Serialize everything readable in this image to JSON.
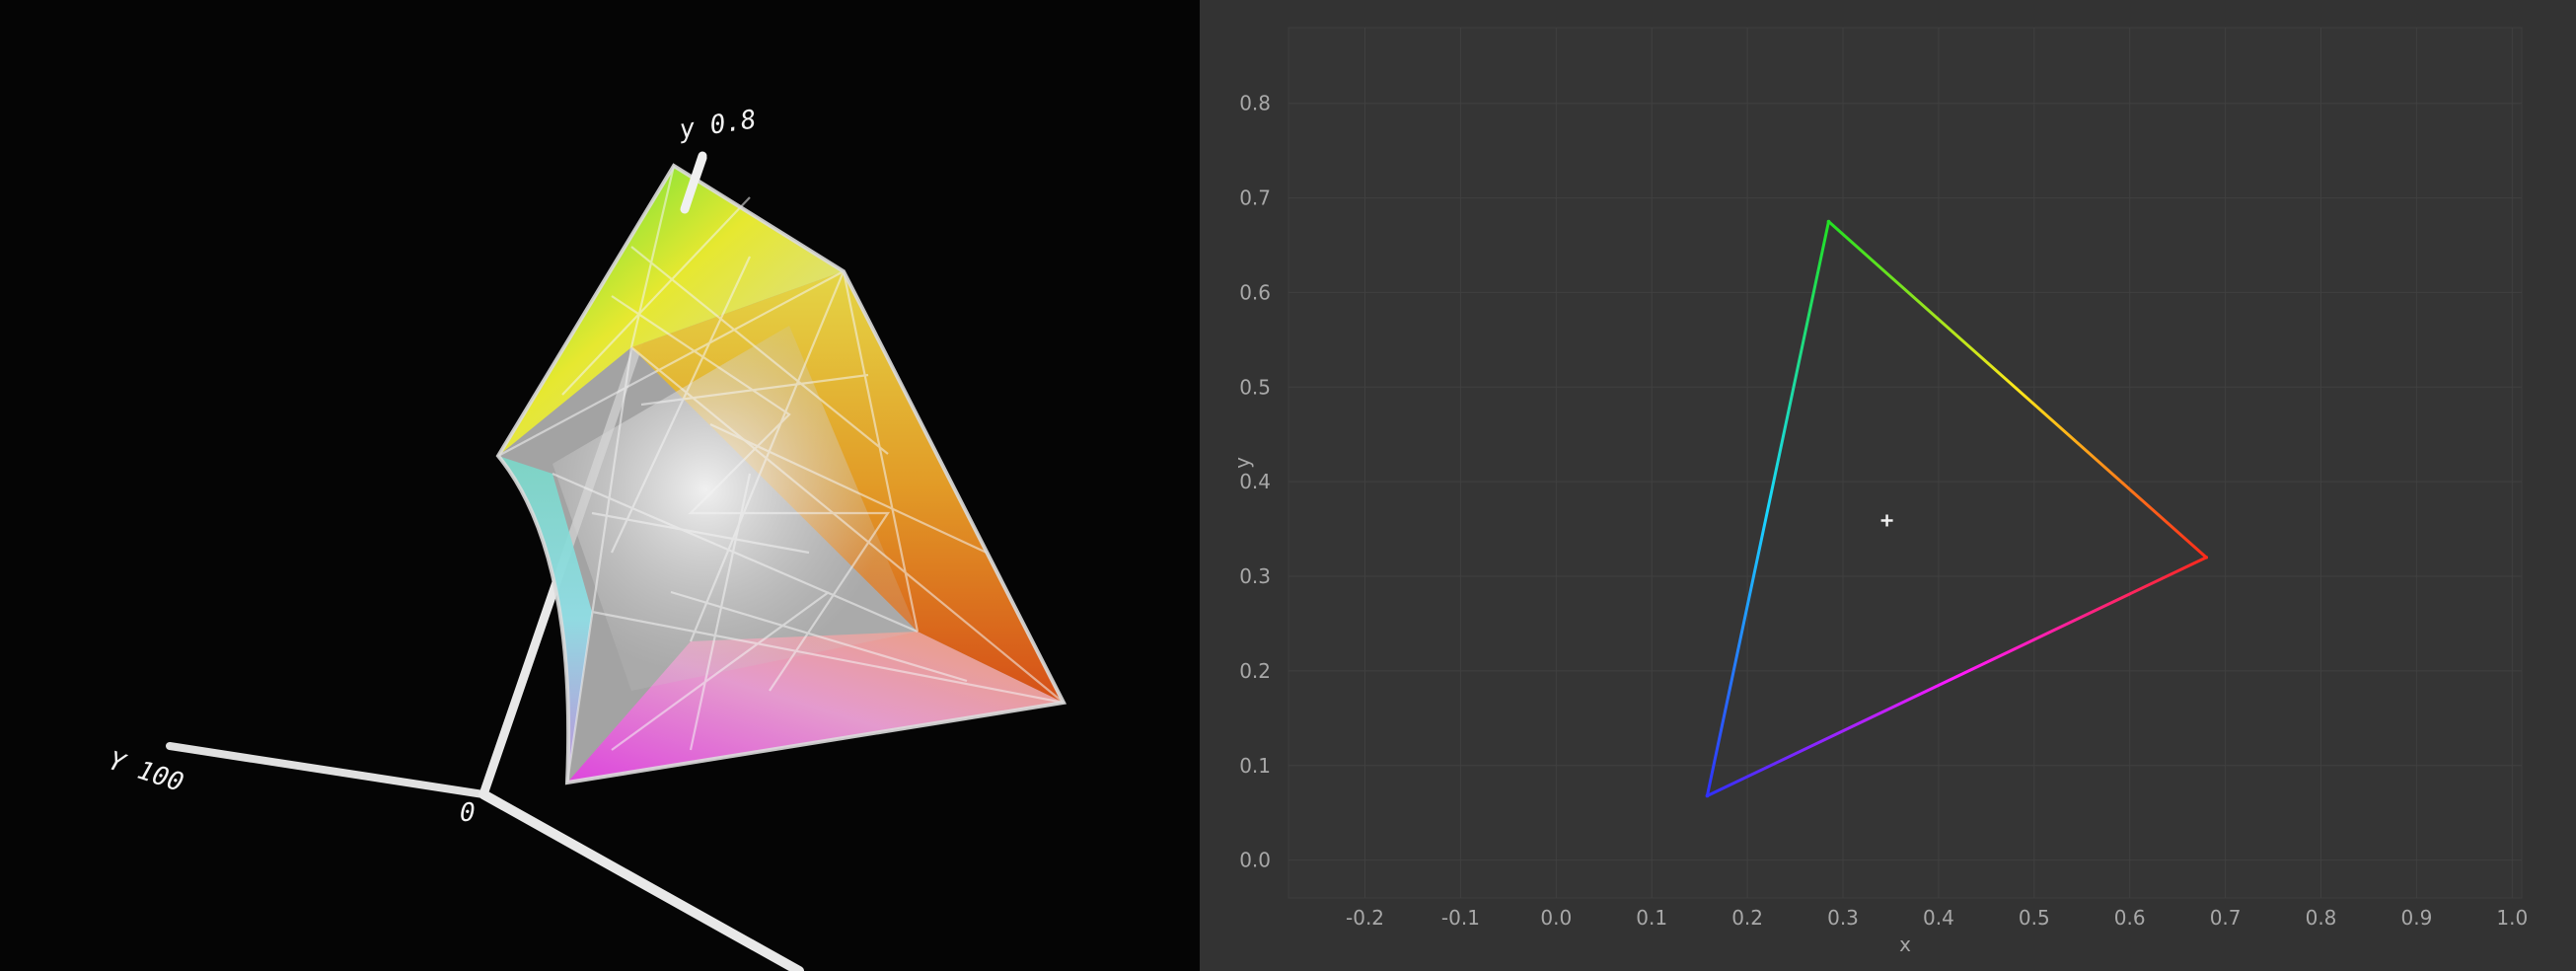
{
  "gamut3d": {
    "axis_labels": {
      "y_axis": "y 0.8",
      "Y_axis": "Y 100",
      "origin": "0"
    }
  },
  "chart_data": {
    "type": "scatter",
    "xlabel": "x",
    "ylabel": "y",
    "xlim": [
      -0.28,
      1.01
    ],
    "ylim": [
      -0.04,
      0.88
    ],
    "x_ticks": [
      "-0.2",
      "-0.1",
      "0.0",
      "0.1",
      "0.2",
      "0.3",
      "0.4",
      "0.5",
      "0.6",
      "0.7",
      "0.8",
      "0.9",
      "1.0"
    ],
    "y_ticks": [
      "0.0",
      "0.1",
      "0.2",
      "0.3",
      "0.4",
      "0.5",
      "0.6",
      "0.7",
      "0.8"
    ],
    "grid": true,
    "gamut_triangle": {
      "vertices": [
        {
          "x": 0.68,
          "y": 0.32,
          "color": "#ff2a1a"
        },
        {
          "x": 0.285,
          "y": 0.675,
          "color": "#22e022"
        },
        {
          "x": 0.158,
          "y": 0.068,
          "color": "#3030ff"
        }
      ],
      "edge_mid_colors": [
        "#ffe81a",
        "#1ad8ff",
        "#ff1aff"
      ]
    },
    "white_point": {
      "x": 0.346,
      "y": 0.359,
      "color": "#f0f0f0"
    }
  }
}
